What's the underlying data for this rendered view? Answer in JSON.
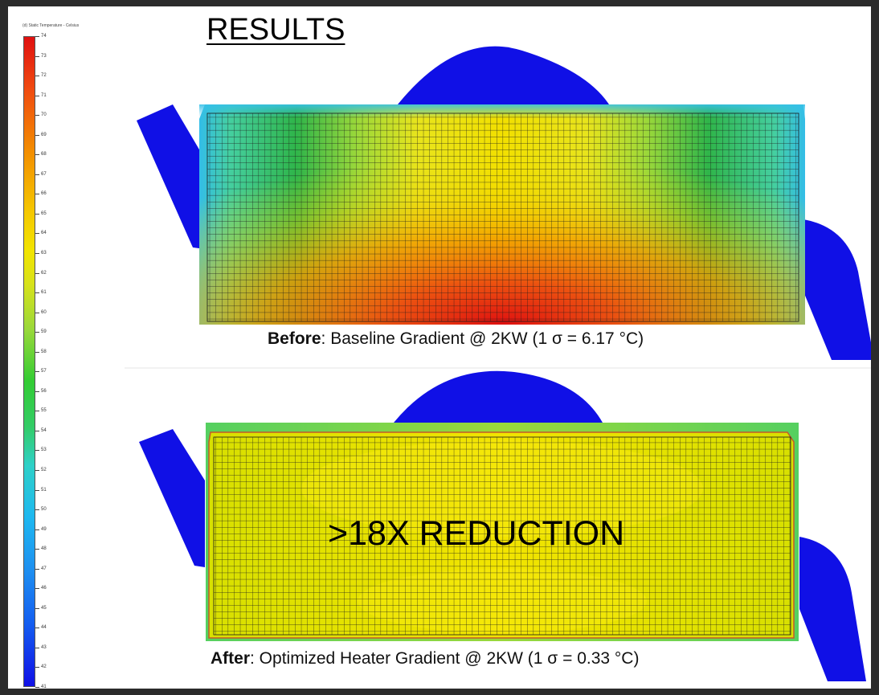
{
  "title": "RESULTS",
  "legend": {
    "title": "(d) Static Temperature - Celsius",
    "min": 41,
    "max": 74,
    "ticks": [
      "74",
      "73",
      "72",
      "71",
      "70",
      "69",
      "68",
      "67",
      "66",
      "65",
      "64",
      "63",
      "62",
      "61",
      "60",
      "59",
      "58",
      "57",
      "56",
      "55",
      "54",
      "53",
      "52",
      "51",
      "50",
      "49",
      "48",
      "47",
      "46",
      "45",
      "44",
      "43",
      "42",
      "41"
    ]
  },
  "before": {
    "label": "Before",
    "text": ":  Baseline Gradient @ 2KW (1 σ = 6.17 °C)"
  },
  "after": {
    "label": "After",
    "text": ":  Optimized Heater Gradient @ 2KW (1 σ = 0.33 °C)",
    "overlay": ">18X REDUCTION"
  },
  "colors": {
    "hot": "#e01515",
    "warm": "#f0a800",
    "mid": "#f2e400",
    "cool": "#33cc33",
    "cold": "#1eb0f0",
    "pipe": "#1010e6"
  }
}
